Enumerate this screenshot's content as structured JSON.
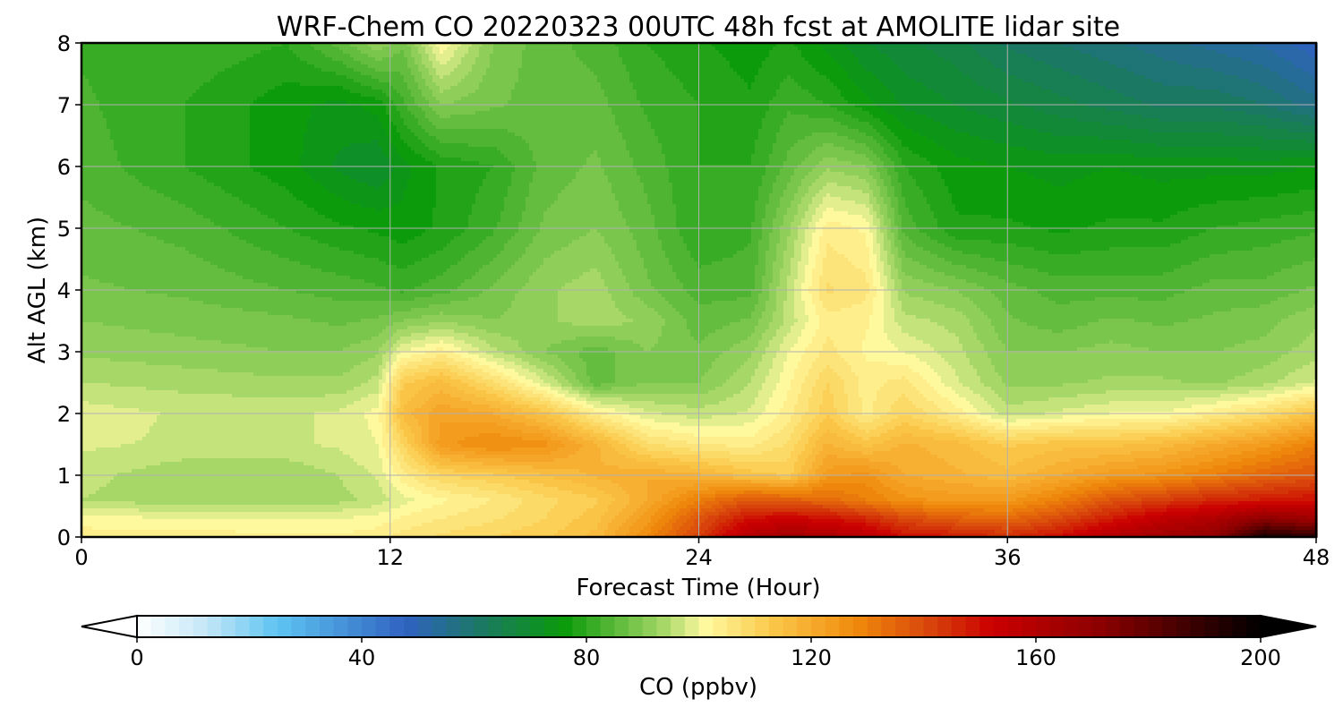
{
  "chart_data": {
    "type": "heatmap",
    "title": "WRF-Chem CO  20220323 00UTC 48h fcst at AMOLITE lidar site",
    "xlabel": "Forecast Time (Hour)",
    "ylabel": "Alt AGL (km)",
    "xlim": [
      0,
      48
    ],
    "ylim": [
      0,
      8
    ],
    "xticks": [
      0,
      12,
      24,
      36,
      48
    ],
    "xtick_labels": [
      "0",
      "12",
      "24",
      "36",
      "48"
    ],
    "yticks": [
      0,
      1,
      2,
      3,
      4,
      5,
      6,
      7,
      8
    ],
    "ytick_labels": [
      "0",
      "1",
      "2",
      "3",
      "4",
      "5",
      "6",
      "7",
      "8"
    ],
    "grid": true,
    "colorbar": {
      "label": "CO  (ppbv)",
      "min": 0,
      "max": 200,
      "extend": "both",
      "ticks": [
        0,
        40,
        80,
        120,
        160,
        200
      ],
      "tick_labels": [
        "0",
        "40",
        "80",
        "120",
        "160",
        "200"
      ],
      "colors": [
        {
          "value": 0,
          "color": "#ffffff"
        },
        {
          "value": 12,
          "color": "#c6e8f7"
        },
        {
          "value": 25,
          "color": "#5ec4f2"
        },
        {
          "value": 48,
          "color": "#2f62c0"
        },
        {
          "value": 62,
          "color": "#1a7a5e"
        },
        {
          "value": 76,
          "color": "#0a9a0a"
        },
        {
          "value": 86,
          "color": "#62bc3e"
        },
        {
          "value": 94,
          "color": "#a8d868"
        },
        {
          "value": 101,
          "color": "#fffaa0"
        },
        {
          "value": 113,
          "color": "#fbc84a"
        },
        {
          "value": 128,
          "color": "#f08a0c"
        },
        {
          "value": 143,
          "color": "#d43a0a"
        },
        {
          "value": 152,
          "color": "#cc0000"
        },
        {
          "value": 172,
          "color": "#8a0000"
        },
        {
          "value": 190,
          "color": "#300000"
        },
        {
          "value": 200,
          "color": "#000000"
        }
      ]
    },
    "x": [
      0,
      4,
      8,
      10,
      11.5,
      12.5,
      14,
      16,
      18,
      20,
      22,
      24,
      26,
      27.5,
      29,
      30.5,
      32,
      34,
      36,
      38,
      40,
      42,
      44,
      46,
      48
    ],
    "y": [
      0,
      0.3,
      0.6,
      1,
      1.5,
      2,
      2.5,
      3,
      3.5,
      4,
      5,
      6,
      7,
      8
    ],
    "z": [
      [
        104,
        104,
        103,
        103,
        104,
        106,
        108,
        110,
        112,
        116,
        128,
        142,
        160,
        165,
        162,
        158,
        150,
        148,
        145,
        150,
        160,
        165,
        170,
        195,
        190
      ],
      [
        101,
        100,
        100,
        100,
        101,
        103,
        105,
        107,
        110,
        114,
        124,
        138,
        150,
        152,
        150,
        146,
        140,
        136,
        134,
        140,
        148,
        156,
        160,
        170,
        165
      ],
      [
        95,
        93,
        93,
        94,
        96,
        99,
        102,
        105,
        109,
        112,
        120,
        130,
        138,
        136,
        134,
        130,
        126,
        124,
        124,
        130,
        138,
        142,
        146,
        148,
        150
      ],
      [
        96,
        93,
        93,
        95,
        98,
        104,
        110,
        112,
        115,
        118,
        120,
        118,
        114,
        112,
        124,
        126,
        120,
        118,
        116,
        120,
        124,
        126,
        130,
        135,
        138
      ],
      [
        98,
        97,
        97,
        98,
        100,
        110,
        124,
        128,
        126,
        118,
        108,
        105,
        104,
        108,
        118,
        114,
        118,
        116,
        112,
        114,
        114,
        116,
        120,
        124,
        130
      ],
      [
        99,
        97,
        97,
        98,
        101,
        116,
        122,
        120,
        114,
        104,
        98,
        96,
        98,
        104,
        112,
        104,
        110,
        104,
        96,
        98,
        100,
        100,
        104,
        108,
        114
      ],
      [
        95,
        94,
        93,
        93,
        96,
        112,
        116,
        108,
        98,
        86,
        90,
        90,
        95,
        102,
        110,
        104,
        106,
        98,
        92,
        92,
        93,
        93,
        92,
        94,
        98
      ],
      [
        92,
        91,
        90,
        90,
        92,
        100,
        104,
        96,
        90,
        86,
        90,
        88,
        92,
        100,
        106,
        102,
        100,
        96,
        90,
        90,
        91,
        90,
        90,
        91,
        94
      ],
      [
        90,
        89,
        88,
        87,
        88,
        90,
        92,
        90,
        92,
        94,
        92,
        86,
        88,
        96,
        104,
        103,
        96,
        94,
        88,
        86,
        88,
        87,
        88,
        89,
        92
      ],
      [
        88,
        87,
        85,
        84,
        83,
        82,
        84,
        88,
        92,
        94,
        88,
        84,
        84,
        96,
        108,
        106,
        92,
        90,
        86,
        84,
        84,
        84,
        86,
        86,
        88
      ],
      [
        86,
        84,
        80,
        78,
        77,
        76,
        78,
        82,
        88,
        90,
        86,
        80,
        82,
        92,
        104,
        102,
        84,
        78,
        78,
        77,
        78,
        78,
        80,
        81,
        82
      ],
      [
        84,
        80,
        76,
        72,
        70,
        74,
        78,
        80,
        86,
        88,
        84,
        80,
        80,
        86,
        92,
        90,
        80,
        76,
        75,
        74,
        75,
        74,
        74,
        74,
        75
      ],
      [
        83,
        80,
        76,
        74,
        76,
        82,
        90,
        88,
        86,
        86,
        82,
        80,
        78,
        82,
        80,
        76,
        72,
        70,
        68,
        66,
        64,
        62,
        62,
        60,
        56
      ],
      [
        82,
        82,
        80,
        86,
        92,
        88,
        102,
        90,
        86,
        84,
        80,
        78,
        76,
        78,
        74,
        70,
        68,
        66,
        62,
        60,
        58,
        56,
        54,
        52,
        48
      ]
    ]
  }
}
